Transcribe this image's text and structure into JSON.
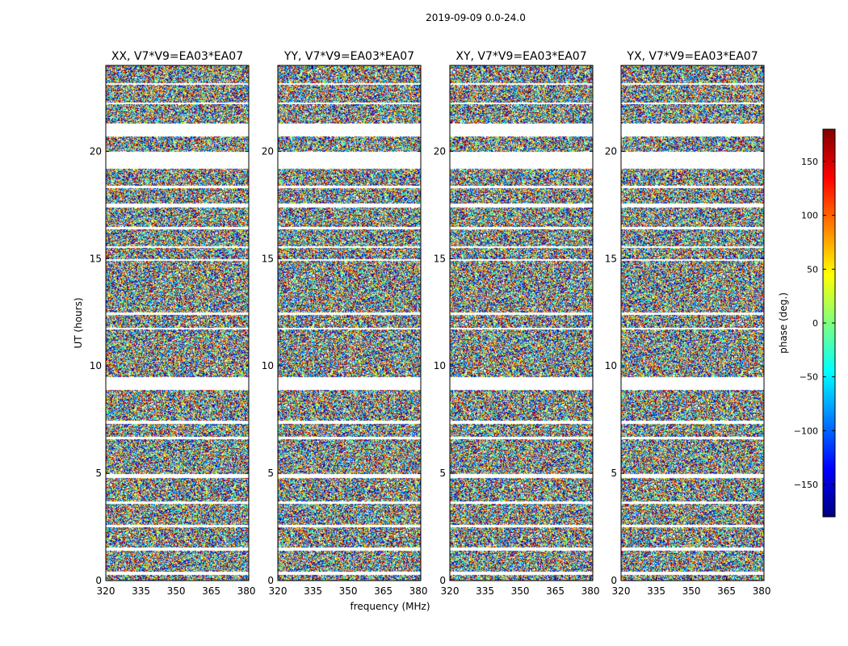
{
  "chart_data": {
    "type": "heatmap",
    "suptitle": "2019-09-09 0.0-24.0",
    "xlabel": "frequency (MHz)",
    "ylabel": "UT (hours)",
    "xlim": [
      320,
      381
    ],
    "ylim": [
      0,
      24
    ],
    "xticks": [
      320,
      335,
      350,
      365,
      380
    ],
    "yticks": [
      0,
      5,
      10,
      15,
      20
    ],
    "colormap": "jet",
    "colorbar": {
      "label": "phase (deg.)",
      "range": [
        -180,
        180
      ],
      "ticks": [
        -150,
        -100,
        -50,
        0,
        50,
        100,
        150
      ],
      "colors": [
        "#00007f",
        "#0000ff",
        "#007fff",
        "#00ffff",
        "#7fff7f",
        "#ffff00",
        "#ff7f00",
        "#ff0000",
        "#7f0000"
      ]
    },
    "flagged_ut_gaps": [
      [
        0.3,
        0.45
      ],
      [
        1.4,
        1.55
      ],
      [
        2.5,
        2.6
      ],
      [
        3.6,
        3.7
      ],
      [
        4.8,
        5.0
      ],
      [
        6.6,
        6.7
      ],
      [
        7.3,
        7.45
      ],
      [
        8.9,
        9.5
      ],
      [
        11.7,
        11.8
      ],
      [
        12.4,
        12.5
      ],
      [
        14.9,
        15.0
      ],
      [
        15.5,
        15.6
      ],
      [
        16.4,
        16.5
      ],
      [
        17.4,
        17.6
      ],
      [
        18.3,
        18.4
      ],
      [
        19.2,
        20.0
      ],
      [
        20.7,
        21.3
      ],
      [
        22.2,
        22.3
      ],
      [
        23.1,
        23.2
      ]
    ],
    "panels": [
      {
        "title": "XX, V7*V9=EA03*EA07"
      },
      {
        "title": "YY, V7*V9=EA03*EA07"
      },
      {
        "title": "XY, V7*V9=EA03*EA07"
      },
      {
        "title": "YX, V7*V9=EA03*EA07"
      }
    ]
  }
}
